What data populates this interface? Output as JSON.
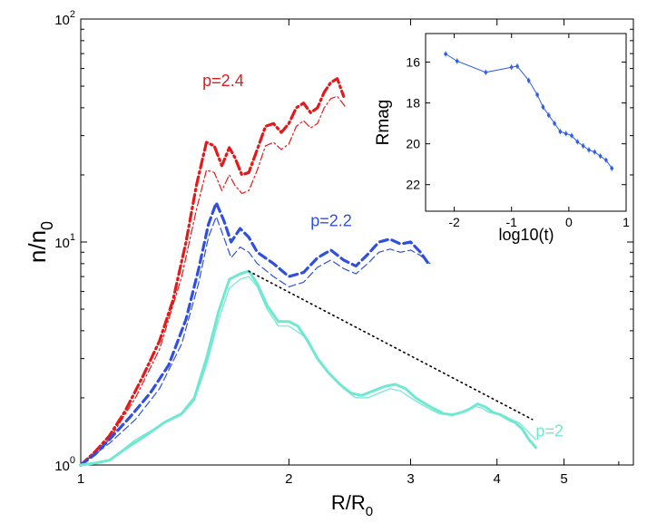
{
  "chart_data": [
    {
      "type": "line",
      "scale": {
        "x": "log",
        "y": "log"
      },
      "xlim": [
        1,
        6.3
      ],
      "ylim": [
        1,
        100
      ],
      "xlabel": "R/R",
      "xlabel_sub": "0",
      "ylabel": "n/n",
      "ylabel_sub": "0",
      "x_ticks": [
        1,
        2,
        3,
        4,
        5
      ],
      "y_ticks": [
        {
          "value": 1,
          "base": "10",
          "exp": "0"
        },
        {
          "value": 10,
          "base": "10",
          "exp": "1"
        },
        {
          "value": 100,
          "base": "10",
          "exp": "2"
        }
      ],
      "series": [
        {
          "name": "p=2.4",
          "label": "p=2.4",
          "color": "#e31a1c",
          "style": "dashdot",
          "x": [
            1.0,
            1.05,
            1.1,
            1.16,
            1.23,
            1.3,
            1.36,
            1.42,
            1.47,
            1.52,
            1.56,
            1.6,
            1.64,
            1.67,
            1.71,
            1.75,
            1.8,
            1.85,
            1.9,
            1.95,
            2.0,
            2.05,
            2.1,
            2.15,
            2.2,
            2.25,
            2.3,
            2.35,
            2.4
          ],
          "y": [
            1.0,
            1.15,
            1.35,
            1.75,
            2.5,
            3.6,
            5.5,
            10.0,
            18.0,
            28.0,
            27.0,
            22.0,
            26.5,
            24.0,
            20.0,
            20.5,
            26.0,
            33.0,
            34.0,
            31.0,
            34.0,
            40.0,
            42.0,
            38.0,
            40.0,
            47.0,
            52.0,
            54.0,
            45.0
          ]
        },
        {
          "name": "p=2.4 thin",
          "color": "#e31a1c",
          "style": "dashdot-thin",
          "x": [
            1.0,
            1.1,
            1.2,
            1.3,
            1.4,
            1.47,
            1.52,
            1.56,
            1.6,
            1.64,
            1.67,
            1.71,
            1.75,
            1.8,
            1.85,
            1.9,
            1.95,
            2.0,
            2.05,
            2.1,
            2.15,
            2.2,
            2.25,
            2.3,
            2.35,
            2.42
          ],
          "y": [
            1.0,
            1.3,
            2.0,
            3.3,
            7.0,
            14.0,
            21.0,
            20.5,
            17.0,
            20.0,
            18.0,
            16.5,
            17.0,
            21.0,
            27.0,
            28.0,
            26.0,
            27.5,
            33.0,
            35.0,
            32.5,
            34.0,
            40.0,
            44.0,
            45.0,
            40.0
          ]
        },
        {
          "name": "p=2.2",
          "label": "p=2.2",
          "color": "#2f4fe0",
          "style": "dashed",
          "x": [
            1.0,
            1.05,
            1.1,
            1.18,
            1.26,
            1.34,
            1.42,
            1.48,
            1.53,
            1.57,
            1.61,
            1.65,
            1.7,
            1.75,
            1.8,
            1.9,
            2.0,
            2.1,
            2.2,
            2.3,
            2.4,
            2.5,
            2.6,
            2.7,
            2.8,
            2.9,
            3.0,
            3.1,
            3.2
          ],
          "y": [
            1.0,
            1.12,
            1.3,
            1.65,
            2.1,
            2.8,
            4.5,
            7.5,
            12.0,
            15.0,
            12.5,
            10.0,
            11.5,
            10.5,
            9.0,
            8.0,
            7.0,
            7.3,
            8.5,
            9.2,
            8.3,
            7.8,
            8.8,
            10.0,
            10.3,
            9.8,
            10.0,
            9.0,
            7.8
          ]
        },
        {
          "name": "p=2.2 thin",
          "color": "#2f4fe0",
          "style": "dashed-thin",
          "x": [
            1.0,
            1.1,
            1.2,
            1.3,
            1.4,
            1.48,
            1.53,
            1.57,
            1.61,
            1.65,
            1.7,
            1.75,
            1.8,
            1.9,
            2.0,
            2.1,
            2.2,
            2.3,
            2.4,
            2.5,
            2.6,
            2.7,
            2.8,
            2.9,
            3.0,
            3.1,
            3.2
          ],
          "y": [
            1.0,
            1.25,
            1.6,
            2.2,
            3.5,
            6.5,
            10.5,
            13.0,
            10.5,
            8.5,
            9.5,
            9.0,
            8.0,
            7.0,
            6.3,
            6.6,
            7.7,
            8.3,
            7.6,
            7.2,
            8.0,
            9.0,
            9.3,
            9.0,
            9.2,
            8.7,
            8.0
          ]
        },
        {
          "name": "p=2",
          "label": "p=2",
          "color": "#6fe8d2",
          "style": "solid",
          "x": [
            1.0,
            1.05,
            1.1,
            1.16,
            1.24,
            1.32,
            1.4,
            1.46,
            1.52,
            1.58,
            1.64,
            1.7,
            1.75,
            1.8,
            1.86,
            1.93,
            2.0,
            2.06,
            2.13,
            2.2,
            2.28,
            2.37,
            2.46,
            2.55,
            2.65,
            2.75,
            2.85,
            2.95,
            3.05,
            3.15,
            3.25,
            3.35,
            3.45,
            3.55,
            3.65,
            3.75,
            3.85,
            3.95,
            4.05,
            4.15,
            4.25,
            4.35,
            4.45,
            4.55
          ],
          "y": [
            1.0,
            1.02,
            1.05,
            1.18,
            1.35,
            1.55,
            1.7,
            2.0,
            3.0,
            4.8,
            6.8,
            7.2,
            7.4,
            6.5,
            5.2,
            4.4,
            4.4,
            4.2,
            3.6,
            3.0,
            2.6,
            2.3,
            2.1,
            2.05,
            2.15,
            2.25,
            2.3,
            2.2,
            2.0,
            1.88,
            1.78,
            1.7,
            1.68,
            1.72,
            1.78,
            1.88,
            1.82,
            1.72,
            1.68,
            1.6,
            1.55,
            1.45,
            1.3,
            1.2
          ]
        },
        {
          "name": "p=2 thin",
          "color": "#6fe8d2",
          "style": "solid-thin",
          "x": [
            1.0,
            1.1,
            1.2,
            1.3,
            1.4,
            1.46,
            1.52,
            1.58,
            1.64,
            1.7,
            1.75,
            1.8,
            1.86,
            1.93,
            2.0,
            2.1,
            2.2,
            2.3,
            2.4,
            2.5,
            2.6,
            2.7,
            2.8,
            2.9,
            3.0,
            3.1,
            3.2,
            3.3,
            3.4,
            3.5,
            3.6,
            3.7,
            3.8,
            3.9,
            4.0,
            4.1,
            4.2,
            4.3,
            4.4,
            4.55
          ],
          "y": [
            1.0,
            1.05,
            1.3,
            1.5,
            1.68,
            1.95,
            2.8,
            4.4,
            6.2,
            6.8,
            7.0,
            6.3,
            5.0,
            4.2,
            4.2,
            3.8,
            3.0,
            2.55,
            2.2,
            2.0,
            2.0,
            2.1,
            2.2,
            2.15,
            2.0,
            1.88,
            1.78,
            1.7,
            1.68,
            1.7,
            1.76,
            1.84,
            1.8,
            1.72,
            1.7,
            1.66,
            1.6,
            1.55,
            1.45,
            1.3
          ]
        },
        {
          "name": "power-law reference",
          "color": "#000000",
          "style": "dotted",
          "x": [
            1.75,
            4.5
          ],
          "y": [
            7.4,
            1.6
          ]
        }
      ]
    },
    {
      "type": "scatter",
      "inset": true,
      "xlabel": "log10(t)",
      "ylabel": "Rmag",
      "xlim": [
        -2.5,
        1.0
      ],
      "ylim": [
        23.3,
        14.6
      ],
      "y_inverted": true,
      "x_ticks": [
        -2,
        -1,
        0,
        1
      ],
      "y_ticks": [
        16,
        18,
        20,
        22
      ],
      "color": "#2f5ee0",
      "x": [
        -2.15,
        -1.95,
        -1.45,
        -1.0,
        -0.9,
        -0.7,
        -0.55,
        -0.45,
        -0.35,
        -0.25,
        -0.15,
        -0.05,
        0.05,
        0.15,
        0.25,
        0.35,
        0.45,
        0.55,
        0.65,
        0.75
      ],
      "y": [
        15.6,
        15.95,
        16.5,
        16.25,
        16.2,
        16.9,
        17.6,
        18.2,
        18.6,
        19.0,
        19.4,
        19.5,
        19.6,
        19.9,
        20.1,
        20.3,
        20.4,
        20.6,
        20.8,
        21.2
      ]
    }
  ]
}
